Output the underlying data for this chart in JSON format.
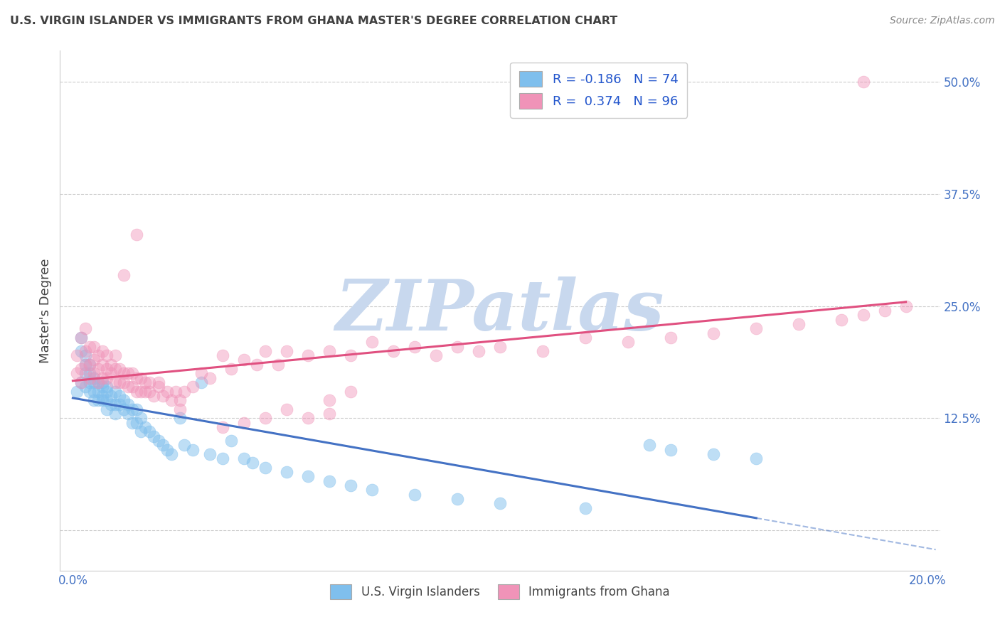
{
  "title": "U.S. VIRGIN ISLANDER VS IMMIGRANTS FROM GHANA MASTER'S DEGREE CORRELATION CHART",
  "source": "Source: ZipAtlas.com",
  "ylabel_label": "Master's Degree",
  "legend_blue_label": "U.S. Virgin Islanders",
  "legend_pink_label": "Immigrants from Ghana",
  "xlim": [
    -0.003,
    0.203
  ],
  "ylim": [
    -0.045,
    0.535
  ],
  "blue_R": -0.186,
  "blue_N": 74,
  "pink_R": 0.374,
  "pink_N": 96,
  "blue_color": "#7fbfed",
  "pink_color": "#f093b8",
  "blue_line_color": "#4472C4",
  "pink_line_color": "#e05080",
  "tick_color": "#4472C4",
  "watermark_color": "#c8d8ee",
  "grid_color": "#cccccc",
  "title_color": "#404040",
  "blue_x": [
    0.001,
    0.002,
    0.002,
    0.002,
    0.003,
    0.003,
    0.003,
    0.003,
    0.004,
    0.004,
    0.004,
    0.004,
    0.005,
    0.005,
    0.005,
    0.005,
    0.006,
    0.006,
    0.006,
    0.007,
    0.007,
    0.007,
    0.007,
    0.008,
    0.008,
    0.008,
    0.008,
    0.009,
    0.009,
    0.01,
    0.01,
    0.01,
    0.011,
    0.011,
    0.012,
    0.012,
    0.013,
    0.013,
    0.014,
    0.014,
    0.015,
    0.015,
    0.016,
    0.016,
    0.017,
    0.018,
    0.019,
    0.02,
    0.021,
    0.022,
    0.023,
    0.025,
    0.026,
    0.028,
    0.03,
    0.032,
    0.035,
    0.037,
    0.04,
    0.042,
    0.045,
    0.05,
    0.055,
    0.06,
    0.065,
    0.07,
    0.08,
    0.09,
    0.1,
    0.12,
    0.135,
    0.14,
    0.15,
    0.16
  ],
  "blue_y": [
    0.155,
    0.2,
    0.215,
    0.165,
    0.175,
    0.16,
    0.185,
    0.195,
    0.175,
    0.165,
    0.155,
    0.185,
    0.165,
    0.155,
    0.145,
    0.17,
    0.155,
    0.145,
    0.165,
    0.15,
    0.165,
    0.145,
    0.16,
    0.145,
    0.155,
    0.135,
    0.16,
    0.14,
    0.15,
    0.14,
    0.155,
    0.13,
    0.14,
    0.15,
    0.135,
    0.145,
    0.13,
    0.14,
    0.12,
    0.135,
    0.12,
    0.135,
    0.11,
    0.125,
    0.115,
    0.11,
    0.105,
    0.1,
    0.095,
    0.09,
    0.085,
    0.125,
    0.095,
    0.09,
    0.165,
    0.085,
    0.08,
    0.1,
    0.08,
    0.075,
    0.07,
    0.065,
    0.06,
    0.055,
    0.05,
    0.045,
    0.04,
    0.035,
    0.03,
    0.025,
    0.095,
    0.09,
    0.085,
    0.08
  ],
  "pink_x": [
    0.001,
    0.001,
    0.002,
    0.002,
    0.002,
    0.003,
    0.003,
    0.003,
    0.004,
    0.004,
    0.004,
    0.005,
    0.005,
    0.005,
    0.006,
    0.006,
    0.006,
    0.007,
    0.007,
    0.007,
    0.008,
    0.008,
    0.008,
    0.009,
    0.009,
    0.01,
    0.01,
    0.01,
    0.011,
    0.011,
    0.012,
    0.012,
    0.013,
    0.013,
    0.014,
    0.014,
    0.015,
    0.015,
    0.016,
    0.016,
    0.017,
    0.017,
    0.018,
    0.018,
    0.019,
    0.02,
    0.021,
    0.022,
    0.023,
    0.024,
    0.025,
    0.026,
    0.028,
    0.03,
    0.032,
    0.035,
    0.037,
    0.04,
    0.043,
    0.045,
    0.048,
    0.05,
    0.055,
    0.06,
    0.065,
    0.07,
    0.075,
    0.08,
    0.085,
    0.09,
    0.095,
    0.1,
    0.11,
    0.12,
    0.13,
    0.14,
    0.15,
    0.16,
    0.17,
    0.18,
    0.185,
    0.19,
    0.195,
    0.05,
    0.06,
    0.06,
    0.065,
    0.055,
    0.045,
    0.04,
    0.035,
    0.025,
    0.02,
    0.015,
    0.012,
    0.185
  ],
  "pink_y": [
    0.175,
    0.195,
    0.18,
    0.165,
    0.215,
    0.185,
    0.2,
    0.225,
    0.17,
    0.185,
    0.205,
    0.175,
    0.19,
    0.205,
    0.165,
    0.18,
    0.195,
    0.17,
    0.185,
    0.2,
    0.17,
    0.18,
    0.195,
    0.175,
    0.185,
    0.165,
    0.18,
    0.195,
    0.165,
    0.18,
    0.165,
    0.175,
    0.16,
    0.175,
    0.16,
    0.175,
    0.155,
    0.17,
    0.155,
    0.17,
    0.155,
    0.165,
    0.155,
    0.165,
    0.15,
    0.16,
    0.15,
    0.155,
    0.145,
    0.155,
    0.145,
    0.155,
    0.16,
    0.175,
    0.17,
    0.195,
    0.18,
    0.19,
    0.185,
    0.2,
    0.185,
    0.2,
    0.195,
    0.2,
    0.195,
    0.21,
    0.2,
    0.205,
    0.195,
    0.205,
    0.2,
    0.205,
    0.2,
    0.215,
    0.21,
    0.215,
    0.22,
    0.225,
    0.23,
    0.235,
    0.24,
    0.245,
    0.25,
    0.135,
    0.145,
    0.13,
    0.155,
    0.125,
    0.125,
    0.12,
    0.115,
    0.135,
    0.165,
    0.33,
    0.285,
    0.5
  ]
}
